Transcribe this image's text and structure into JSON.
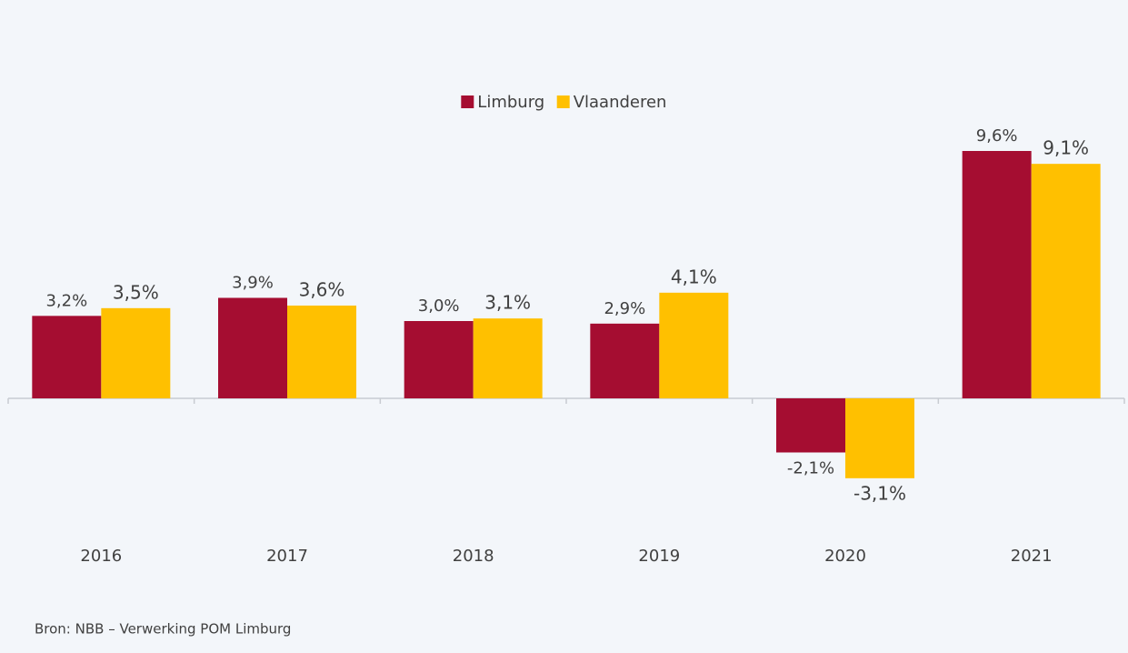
{
  "chart_data": {
    "type": "bar",
    "categories": [
      "2016",
      "2017",
      "2018",
      "2019",
      "2020",
      "2021"
    ],
    "series": [
      {
        "name": "Limburg",
        "color": "#a50d31",
        "values": [
          3.2,
          3.9,
          3.0,
          2.9,
          -2.1,
          9.6
        ],
        "value_labels": [
          "3,2%",
          "3,9%",
          "3,0%",
          "2,9%",
          "-2,1%",
          "9,6%"
        ]
      },
      {
        "name": "Vlaanderen",
        "color": "#ffc000",
        "values": [
          3.5,
          3.6,
          3.1,
          4.1,
          -3.1,
          9.1
        ],
        "value_labels": [
          "3,5%",
          "3,6%",
          "3,1%",
          "4,1%",
          "-3,1%",
          "9,1%"
        ]
      }
    ],
    "legend": "top",
    "source": "Bron: NBB – Verwerking POM Limburg"
  }
}
